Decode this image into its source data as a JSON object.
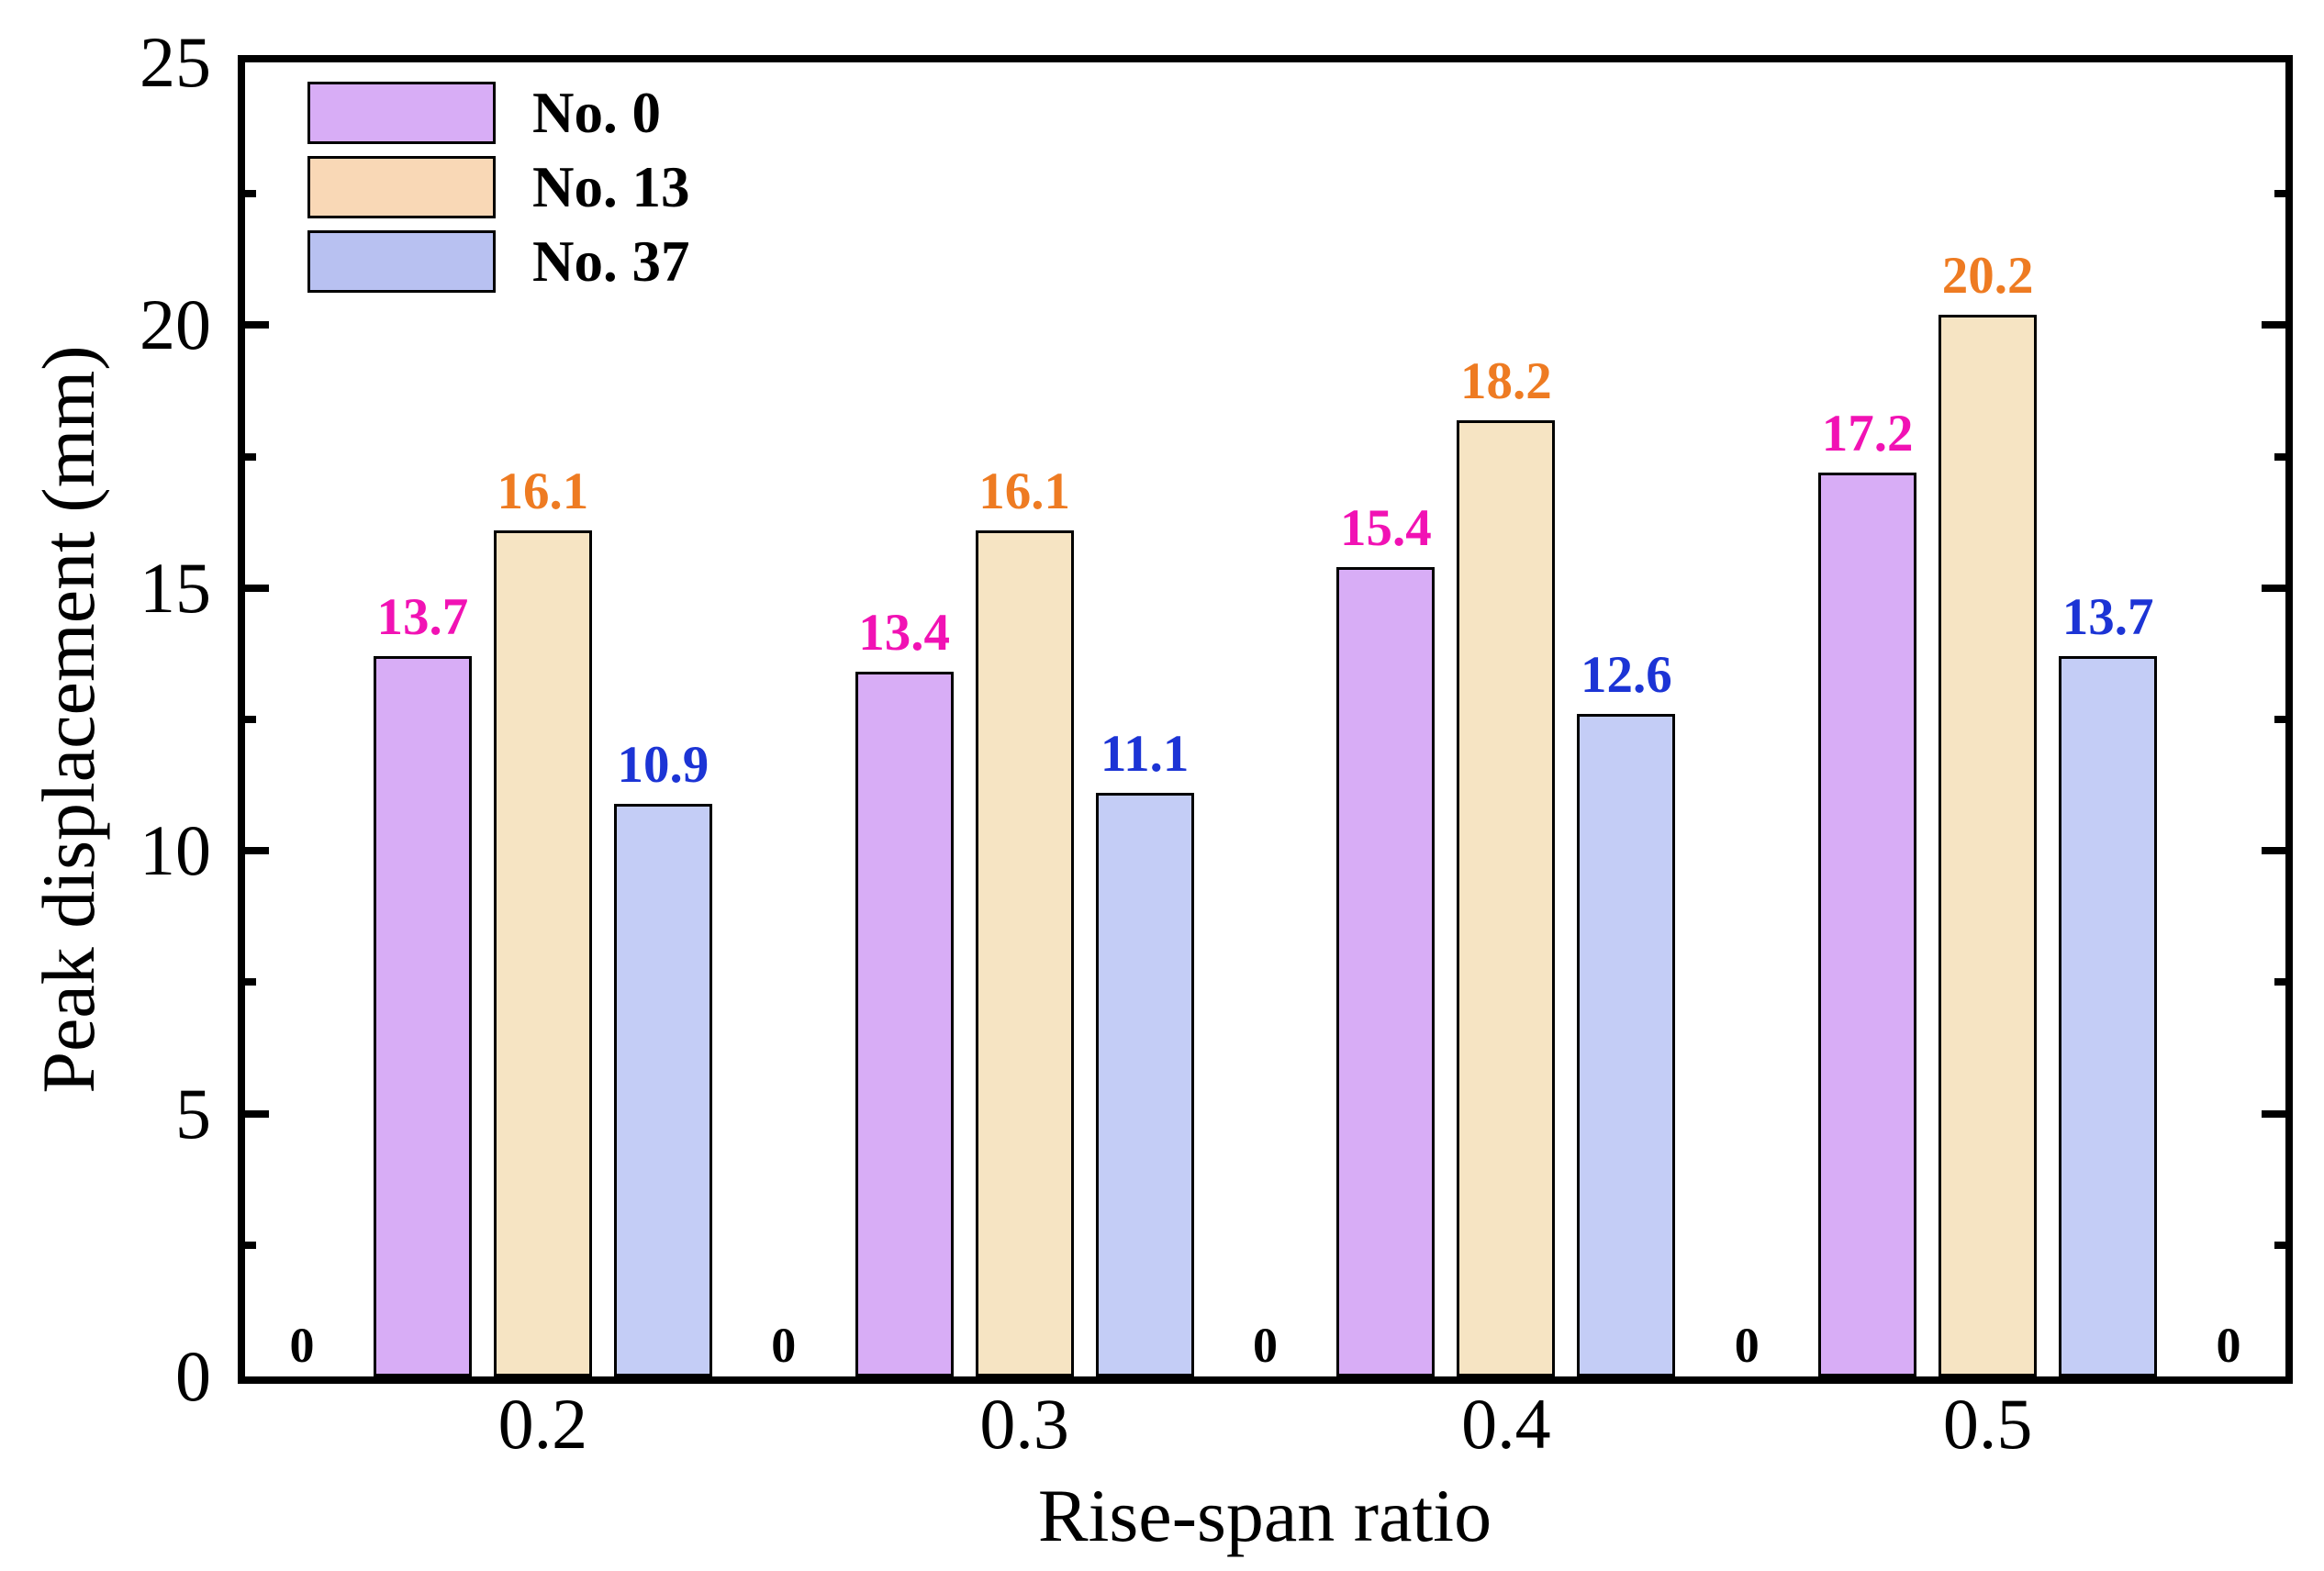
{
  "chart_data": {
    "type": "bar",
    "title": "",
    "xlabel": "Rise-span ratio",
    "ylabel": "Peak displacement (mm)",
    "categories": [
      "0.2",
      "0.3",
      "0.4",
      "0.5"
    ],
    "series": [
      {
        "name": "No. 0",
        "values": [
          13.7,
          13.4,
          15.4,
          17.2
        ],
        "value_labels": [
          "13.7",
          "13.4",
          "15.4",
          "17.2"
        ],
        "bar_color": "#d8adf6",
        "legend_color": "#d8adf6",
        "label_color": "#f112b4"
      },
      {
        "name": "No. 13",
        "values": [
          16.1,
          16.1,
          18.2,
          20.2
        ],
        "value_labels": [
          "16.1",
          "16.1",
          "18.2",
          "20.2"
        ],
        "bar_color": "#f6e4c3",
        "legend_color": "#f9d8b6",
        "label_color": "#ee7b22"
      },
      {
        "name": "No. 37",
        "values": [
          10.9,
          11.1,
          12.6,
          13.7
        ],
        "value_labels": [
          "10.9",
          "11.1",
          "12.6",
          "13.7"
        ],
        "bar_color": "#c4cdf6",
        "legend_color": "#b8c1f1",
        "label_color": "#1c34d5"
      }
    ],
    "ylim": [
      0,
      25
    ],
    "y_major_ticks": [
      0,
      5,
      10,
      15,
      20,
      25
    ],
    "y_major_tick_labels": [
      "0",
      "5",
      "10",
      "15",
      "20",
      "25"
    ],
    "y_minor_step": 2.5,
    "grid": false,
    "frame": true,
    "legend_position": "top-left",
    "bar_edge_color": "#000000",
    "baseline_zero_labels": [
      "0",
      "0",
      "0",
      "0",
      "0"
    ]
  }
}
